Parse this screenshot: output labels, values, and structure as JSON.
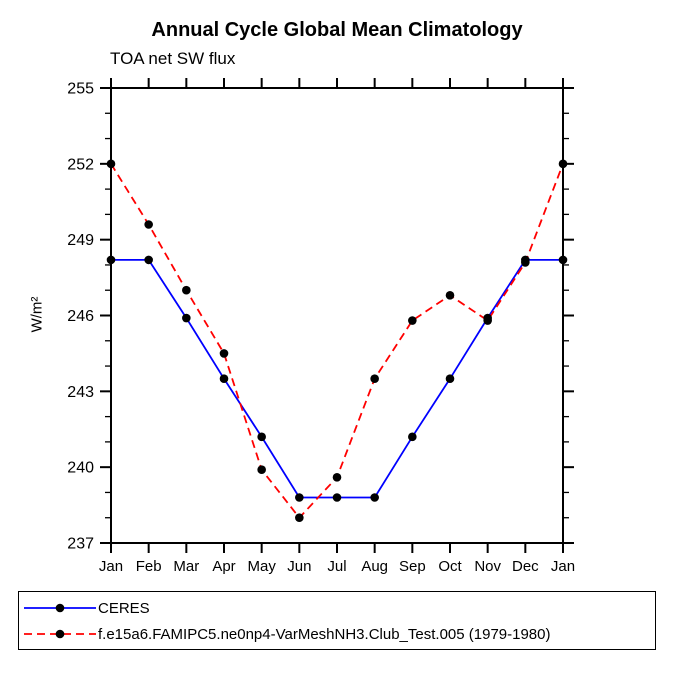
{
  "title": "Annual Cycle Global Mean Climatology",
  "subtitle": "TOA net SW flux",
  "chart_data": {
    "type": "line",
    "title": "Annual Cycle Global Mean Climatology",
    "subtitle": "TOA net SW flux",
    "xlabel": "",
    "ylabel": "W/m²",
    "ylim": [
      237,
      255
    ],
    "ytick_major_step": 3,
    "ytick_minor_step": 1,
    "grid": false,
    "legend_position": "bottom",
    "categories": [
      "Jan",
      "Feb",
      "Mar",
      "Apr",
      "May",
      "Jun",
      "Jul",
      "Aug",
      "Sep",
      "Oct",
      "Nov",
      "Dec",
      "Jan"
    ],
    "series": [
      {
        "name": "CERES",
        "color": "#0000ff",
        "line_style": "solid",
        "marker": "dot",
        "marker_color": "#000000",
        "values": [
          248.2,
          248.2,
          245.9,
          243.5,
          241.2,
          238.8,
          238.8,
          238.8,
          241.2,
          243.5,
          245.9,
          248.2,
          248.2
        ]
      },
      {
        "name": "f.e15a6.FAMIPC5.ne0np4-VarMeshNH3.Club_Test.005 (1979-1980)",
        "color": "#ff0000",
        "line_style": "dashed",
        "marker": "dot",
        "marker_color": "#000000",
        "values": [
          252.0,
          249.6,
          247.0,
          244.5,
          239.9,
          238.0,
          239.6,
          243.5,
          245.8,
          246.8,
          245.8,
          248.1,
          252.0
        ]
      }
    ]
  }
}
